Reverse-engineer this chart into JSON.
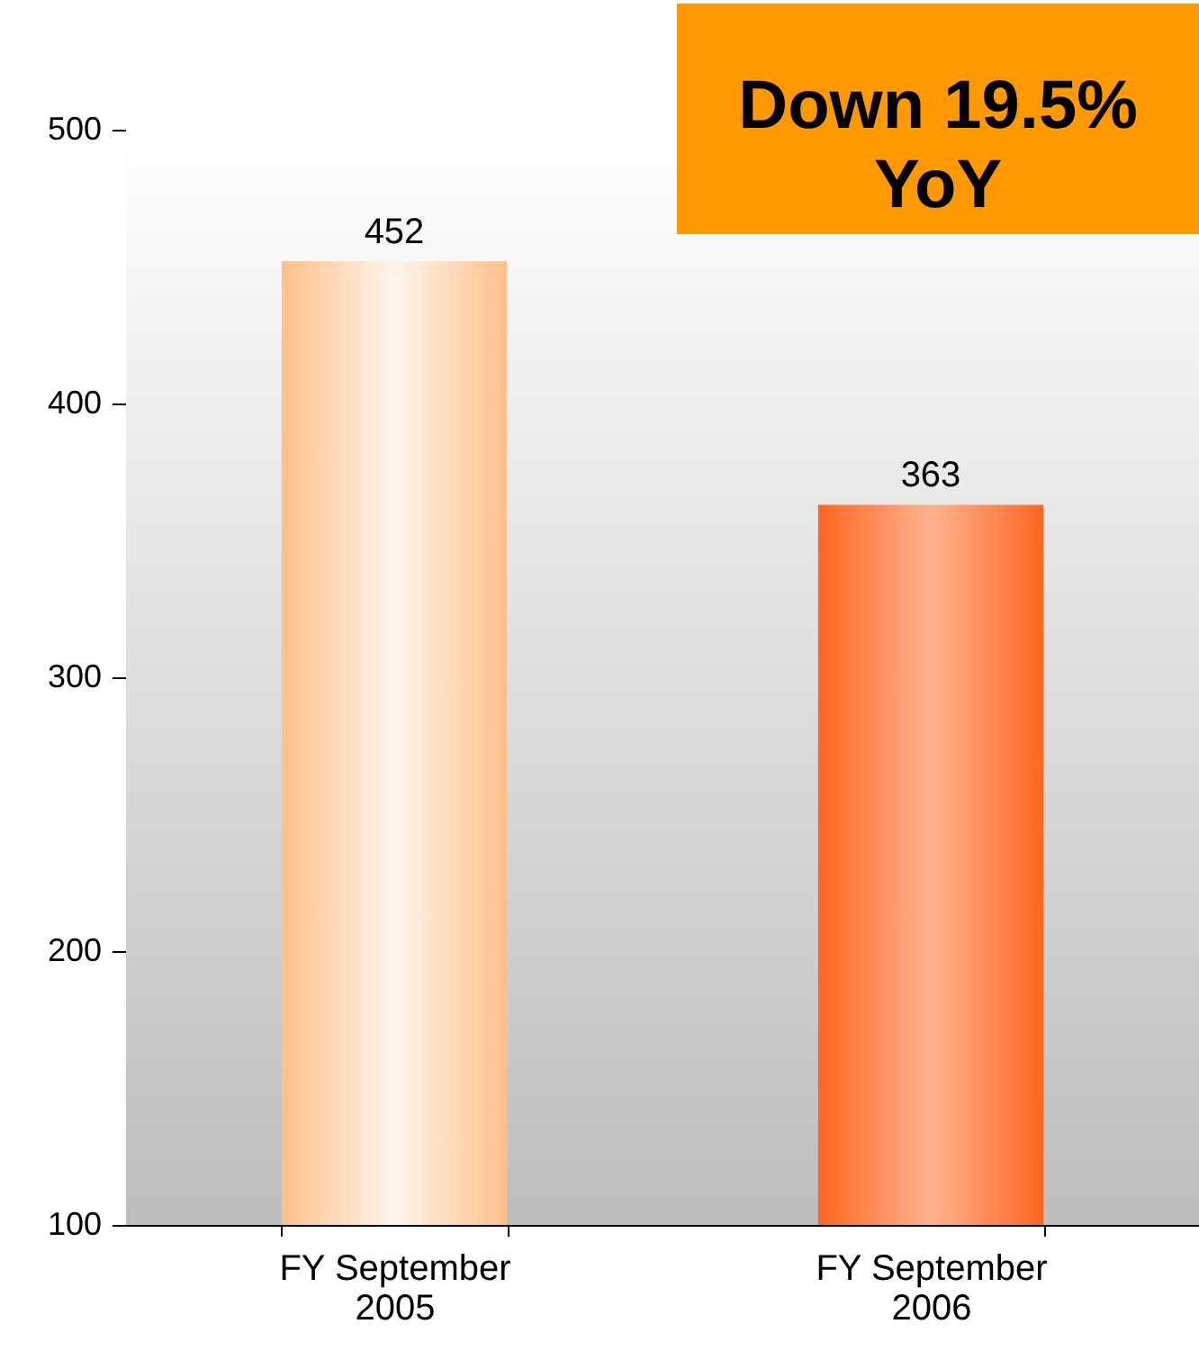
{
  "chart_data": {
    "type": "bar",
    "categories": [
      "FY September\n2005",
      "FY September\n2006"
    ],
    "values": [
      452,
      363
    ],
    "colors": [
      "#ffc08a",
      "#ff6620"
    ],
    "ylim": [
      100,
      500
    ],
    "yticks": [
      100,
      200,
      300,
      400,
      500
    ],
    "data_labels": true,
    "annotations": [
      "Down 19.5%\nYoY"
    ]
  }
}
